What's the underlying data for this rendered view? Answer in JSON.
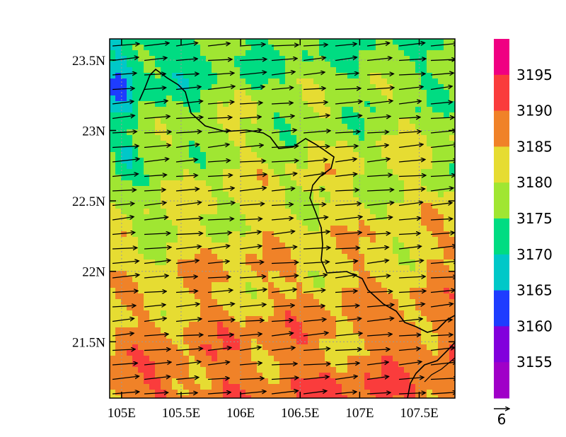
{
  "chart_data": {
    "type": "heatmap",
    "x_axis": {
      "range": [
        104.9,
        107.8
      ],
      "ticks": [
        "105E",
        "105.5E",
        "106E",
        "106.5E",
        "107E",
        "107.5E"
      ],
      "tick_values": [
        105,
        105.5,
        106,
        106.5,
        107,
        107.5
      ]
    },
    "y_axis": {
      "range": [
        21.1,
        23.65
      ],
      "ticks": [
        "21.5N",
        "22N",
        "22.5N",
        "23N",
        "23.5N"
      ],
      "tick_values": [
        21.5,
        22,
        22.5,
        23,
        23.5
      ]
    },
    "grid": true,
    "legend": "right",
    "colorbar": {
      "labels": [
        "3155",
        "3160",
        "3165",
        "3170",
        "3175",
        "3180",
        "3185",
        "3190",
        "3195"
      ],
      "colors": [
        "#a000c8",
        "#8200dc",
        "#1e3cff",
        "#00c8c8",
        "#00dc82",
        "#a0e632",
        "#e6dc32",
        "#f08228",
        "#fa3c3c",
        "#f00082"
      ]
    },
    "vector_reference": {
      "label": "6",
      "magnitude": 6
    },
    "field": {
      "description_free": true,
      "dominant_level_ranges": [
        {
          "region": "north-west",
          "min": 3160,
          "max": 3180
        },
        {
          "region": "center-east",
          "min": 3180,
          "max": 3185
        },
        {
          "region": "south",
          "min": 3185,
          "max": 3195
        }
      ]
    },
    "wind": {
      "direction": "westerly",
      "u_typical": 6,
      "v_typical": 0.6
    }
  }
}
